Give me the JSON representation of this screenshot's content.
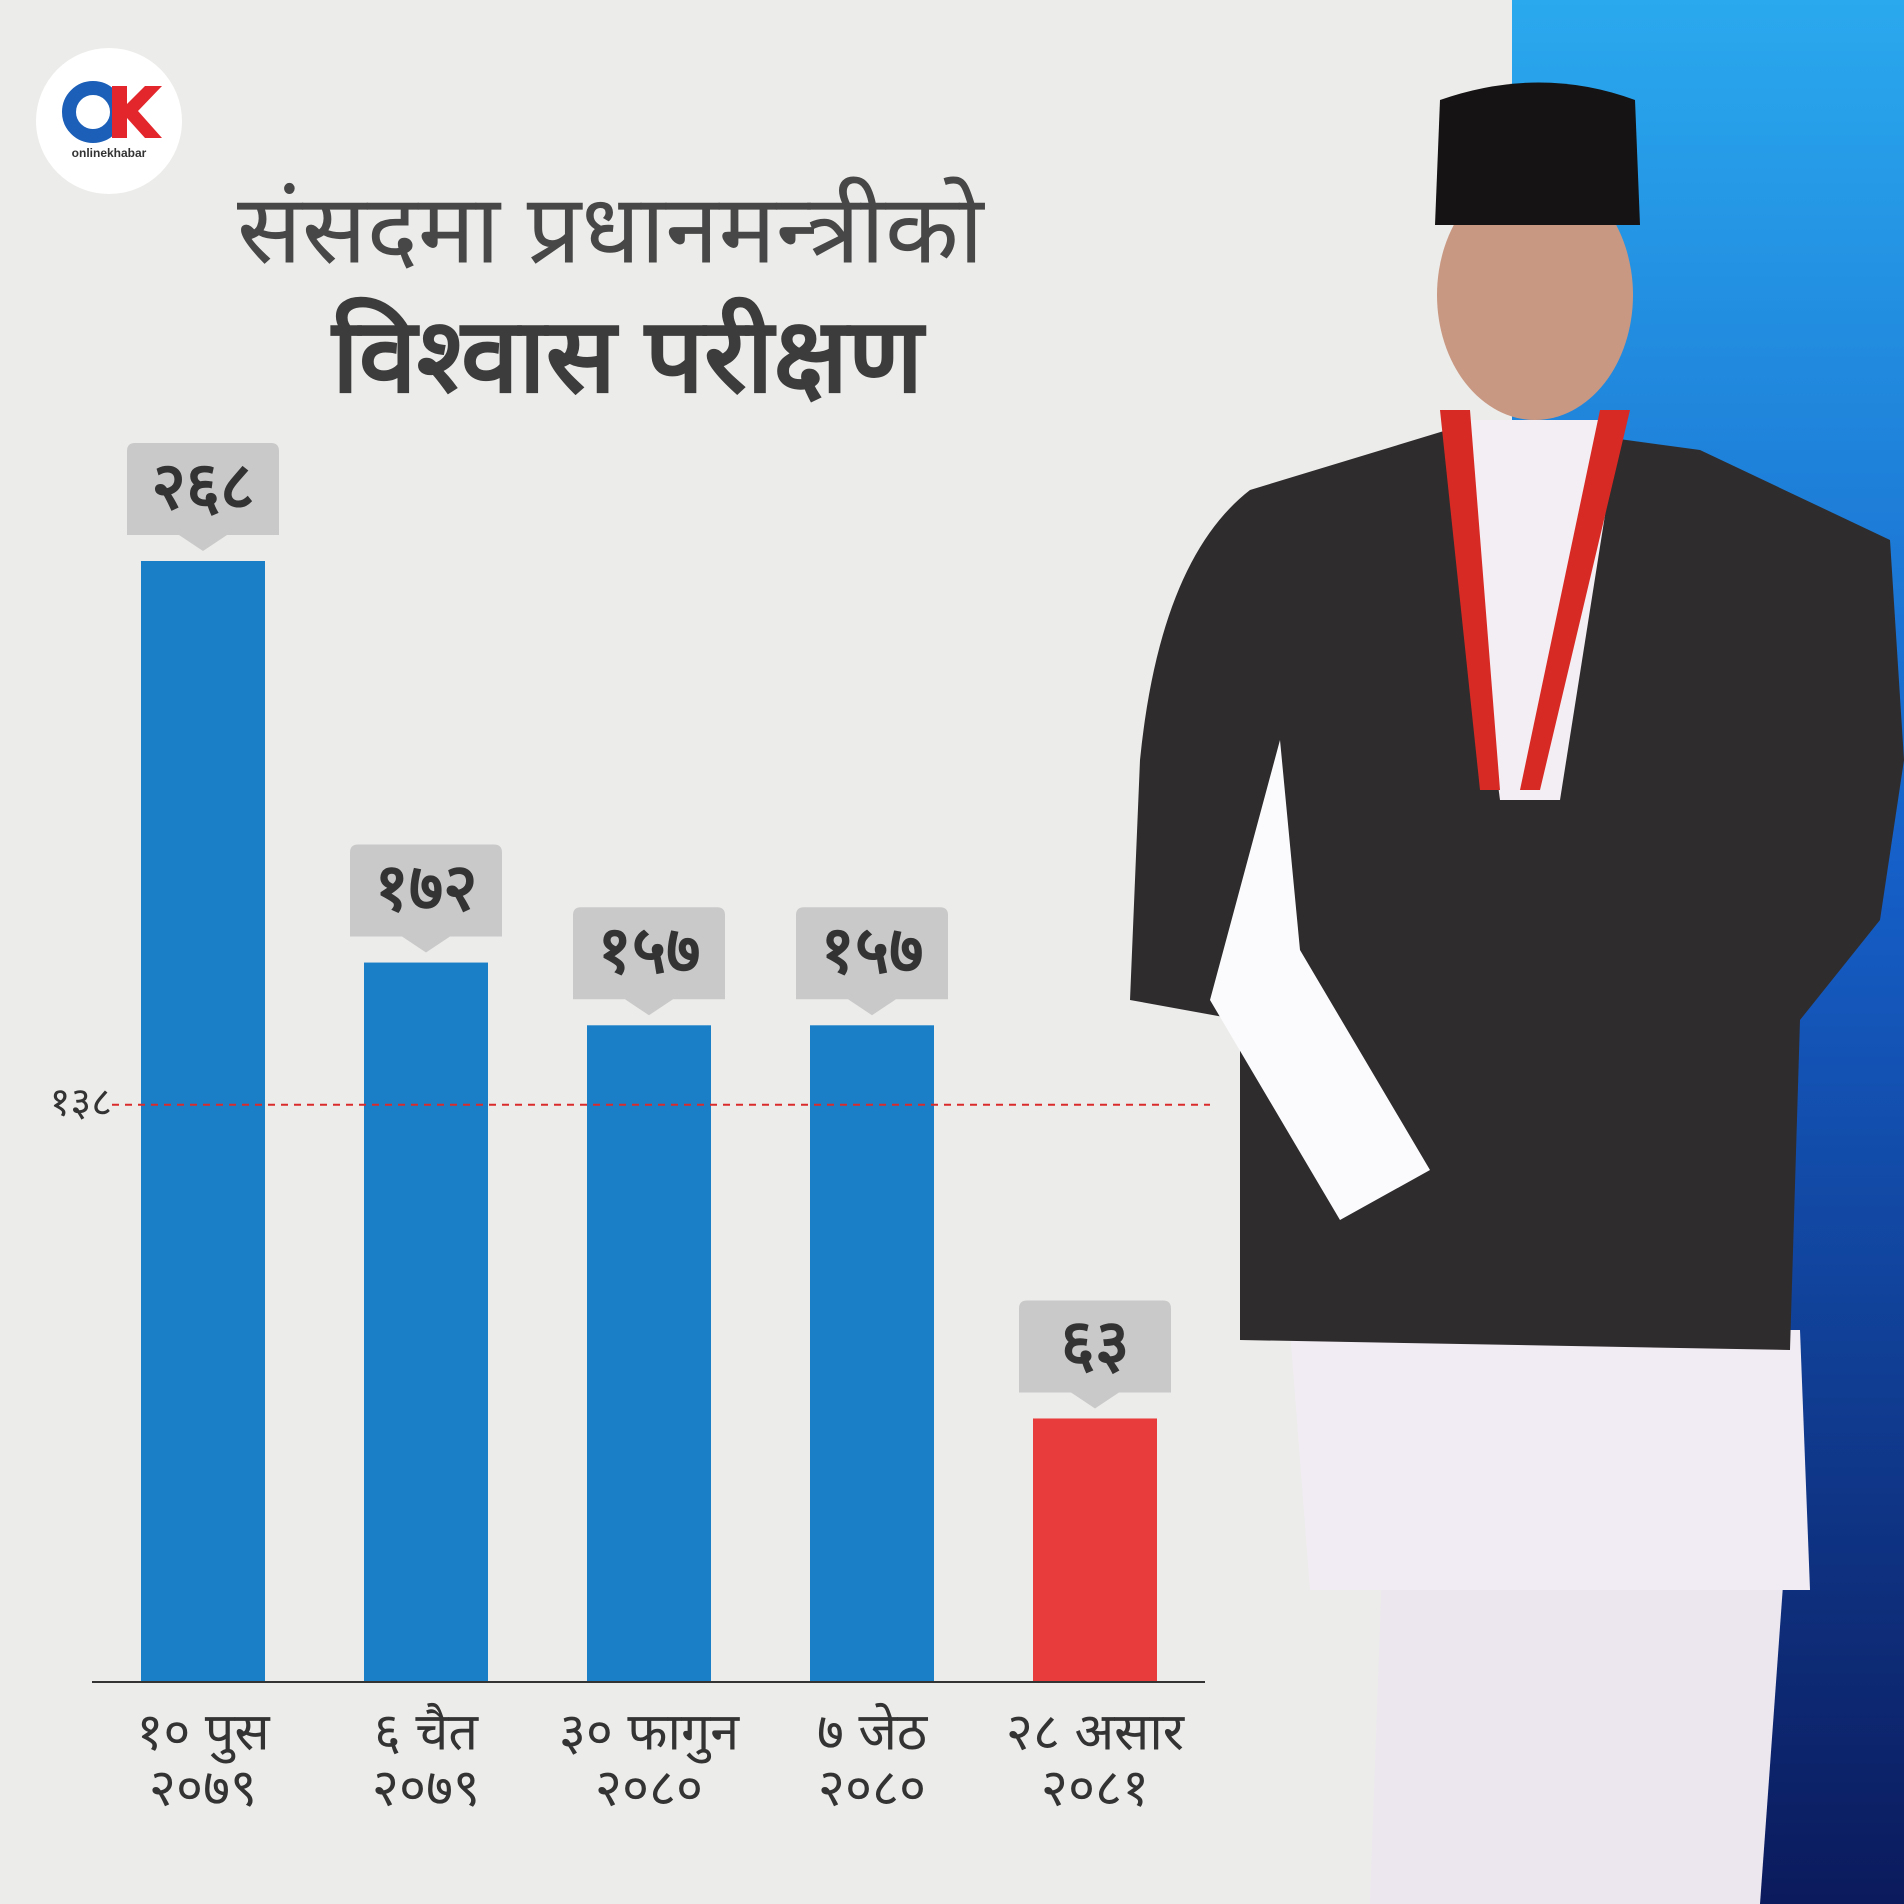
{
  "chart_data": {
    "type": "bar",
    "logo": "onlinekhabar",
    "title": "संसदमा प्रधानमन्त्रीको",
    "subtitle": "विश्वास परीक्षण",
    "categories": [
      [
        "१० पुस",
        "२०७९"
      ],
      [
        "६ चैत",
        "२०७९"
      ],
      [
        "३० फागुन",
        "२०८०"
      ],
      [
        "७ जेठ",
        "२०८०"
      ],
      [
        "२८ असार",
        "२०८१"
      ]
    ],
    "values": [
      268,
      172,
      157,
      157,
      63
    ],
    "value_labels": [
      "२६८",
      "१७२",
      "१५७",
      "१५७",
      "६३"
    ],
    "colors": [
      "#1b7fc7",
      "#1b7fc7",
      "#1b7fc7",
      "#1b7fc7",
      "#e83c3c"
    ],
    "ylim": [
      0,
      268
    ],
    "reference_line": {
      "value": 138,
      "label": "१३८",
      "color": "#d92b2b"
    }
  }
}
